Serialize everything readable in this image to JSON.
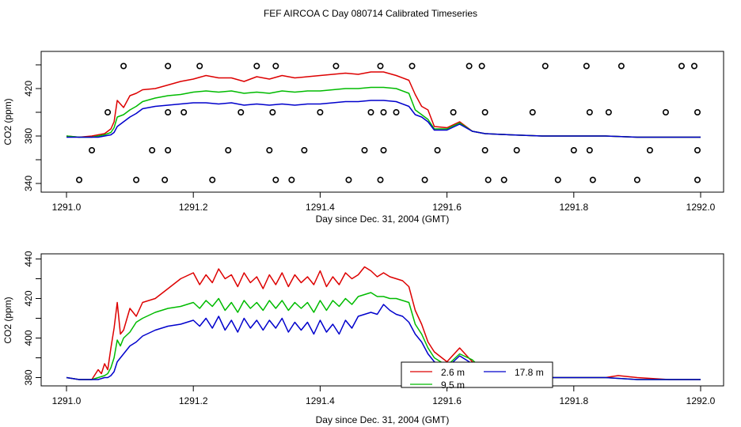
{
  "page_title": "FEF AIRCOA C  Day 080714  Calibrated Timeseries",
  "legend": {
    "entries": [
      {
        "label": "2.6 m",
        "color": "#dd0000"
      },
      {
        "label": "17.8 m",
        "color": "#0000cc"
      },
      {
        "label": "9.5 m",
        "color": "#00bb00"
      }
    ]
  },
  "chart_data": [
    {
      "type": "line",
      "title": "",
      "xlabel": "Day since Dec. 31, 2004 (GMT)",
      "ylabel": "CO2 (ppm)",
      "xlim": [
        1291.0,
        1292.0
      ],
      "ylim": [
        338,
        446
      ],
      "xticks": [
        1291.0,
        1291.2,
        1291.4,
        1291.6,
        1291.8,
        1292.0
      ],
      "xtick_labels": [
        "1291.0",
        "1291.2",
        "1291.4",
        "1291.6",
        "1291.8",
        "1292.0"
      ],
      "yticks": [
        340,
        380,
        420
      ],
      "ytick_labels": [
        "340",
        "380",
        "420"
      ],
      "minor_yticks": [
        360,
        400,
        440
      ],
      "series": [
        {
          "name": "2.6 m",
          "color": "#dd0000",
          "x": [
            1291.0,
            1291.02,
            1291.04,
            1291.05,
            1291.06,
            1291.07,
            1291.075,
            1291.08,
            1291.09,
            1291.1,
            1291.11,
            1291.12,
            1291.14,
            1291.16,
            1291.18,
            1291.2,
            1291.22,
            1291.24,
            1291.26,
            1291.28,
            1291.3,
            1291.32,
            1291.34,
            1291.36,
            1291.38,
            1291.4,
            1291.42,
            1291.44,
            1291.46,
            1291.48,
            1291.5,
            1291.52,
            1291.54,
            1291.55,
            1291.56,
            1291.57,
            1291.58,
            1291.6,
            1291.62,
            1291.64,
            1291.66,
            1291.7,
            1291.75,
            1291.8,
            1291.85,
            1291.9,
            1291.95,
            1292.0
          ],
          "y": [
            380,
            379,
            380,
            381,
            382,
            386,
            392,
            410,
            404,
            414,
            416,
            419,
            420,
            423,
            426,
            428,
            431,
            429,
            429,
            426,
            430,
            428,
            431,
            429,
            430,
            431,
            432,
            433,
            432,
            434,
            434,
            431,
            427,
            415,
            405,
            402,
            388,
            387,
            392,
            384,
            382,
            381,
            380,
            380,
            380,
            379,
            379,
            379
          ]
        },
        {
          "name": "9.5 m",
          "color": "#00bb00",
          "x": [
            1291.0,
            1291.02,
            1291.04,
            1291.05,
            1291.06,
            1291.07,
            1291.075,
            1291.08,
            1291.09,
            1291.1,
            1291.11,
            1291.12,
            1291.14,
            1291.16,
            1291.18,
            1291.2,
            1291.22,
            1291.24,
            1291.26,
            1291.28,
            1291.3,
            1291.32,
            1291.34,
            1291.36,
            1291.38,
            1291.4,
            1291.42,
            1291.44,
            1291.46,
            1291.48,
            1291.5,
            1291.52,
            1291.54,
            1291.55,
            1291.56,
            1291.57,
            1291.58,
            1291.6,
            1291.62,
            1291.64,
            1291.66,
            1291.7,
            1291.75,
            1291.8,
            1291.85,
            1291.9,
            1291.95,
            1292.0
          ],
          "y": [
            380,
            379,
            379,
            380,
            381,
            383,
            387,
            396,
            398,
            402,
            405,
            409,
            412,
            414,
            415,
            417,
            418,
            417,
            418,
            416,
            417,
            416,
            418,
            417,
            418,
            418,
            419,
            420,
            420,
            421,
            421,
            420,
            416,
            402,
            398,
            394,
            386,
            386,
            391,
            384,
            382,
            381,
            380,
            380,
            380,
            379,
            379,
            379
          ]
        },
        {
          "name": "17.8 m",
          "color": "#0000cc",
          "x": [
            1291.0,
            1291.02,
            1291.04,
            1291.05,
            1291.06,
            1291.07,
            1291.075,
            1291.08,
            1291.09,
            1291.1,
            1291.11,
            1291.12,
            1291.14,
            1291.16,
            1291.18,
            1291.2,
            1291.22,
            1291.24,
            1291.26,
            1291.28,
            1291.3,
            1291.32,
            1291.34,
            1291.36,
            1291.38,
            1291.4,
            1291.42,
            1291.44,
            1291.46,
            1291.48,
            1291.5,
            1291.52,
            1291.54,
            1291.55,
            1291.56,
            1291.57,
            1291.58,
            1291.6,
            1291.62,
            1291.64,
            1291.66,
            1291.7,
            1291.75,
            1291.8,
            1291.85,
            1291.9,
            1291.95,
            1292.0
          ],
          "y": [
            379,
            379,
            379,
            379,
            380,
            381,
            383,
            388,
            392,
            396,
            399,
            403,
            405,
            406,
            407,
            408,
            408,
            407,
            408,
            406,
            407,
            406,
            407,
            406,
            407,
            407,
            408,
            409,
            409,
            410,
            410,
            409,
            405,
            398,
            396,
            392,
            385,
            385,
            390,
            384,
            382,
            381,
            380,
            380,
            380,
            379,
            379,
            379
          ]
        }
      ],
      "markers": {
        "symbol": "open-circle",
        "x": [
          1291.02,
          1291.04,
          1291.065,
          1291.09,
          1291.11,
          1291.135,
          1291.155,
          1291.16,
          1291.16,
          1291.16,
          1291.185,
          1291.21,
          1291.23,
          1291.255,
          1291.275,
          1291.3,
          1291.32,
          1291.325,
          1291.33,
          1291.33,
          1291.355,
          1291.375,
          1291.4,
          1291.425,
          1291.445,
          1291.47,
          1291.48,
          1291.495,
          1291.495,
          1291.5,
          1291.5,
          1291.52,
          1291.545,
          1291.565,
          1291.585,
          1291.61,
          1291.635,
          1291.655,
          1291.66,
          1291.66,
          1291.665,
          1291.69,
          1291.71,
          1291.735,
          1291.755,
          1291.775,
          1291.8,
          1291.82,
          1291.825,
          1291.825,
          1291.83,
          1291.855,
          1291.875,
          1291.9,
          1291.92,
          1291.945,
          1291.97,
          1291.99,
          1291.995,
          1291.995,
          1291.995
        ],
        "y": [
          343,
          368,
          400,
          439,
          343,
          368,
          343,
          439,
          400,
          368,
          400,
          439,
          343,
          368,
          400,
          439,
          368,
          400,
          439,
          343,
          343,
          368,
          400,
          439,
          343,
          368,
          400,
          439,
          343,
          368,
          400,
          400,
          439,
          343,
          368,
          400,
          439,
          439,
          400,
          368,
          343,
          343,
          368,
          400,
          439,
          343,
          368,
          439,
          400,
          368,
          343,
          400,
          439,
          343,
          368,
          400,
          439,
          439,
          400,
          368,
          343
        ]
      }
    },
    {
      "type": "line",
      "title": "",
      "xlabel": "Day since Dec. 31, 2004 (GMT)",
      "ylabel": "CO2 (ppm)",
      "xlim": [
        1291.0,
        1292.0
      ],
      "ylim": [
        377,
        441
      ],
      "xticks": [
        1291.0,
        1291.2,
        1291.4,
        1291.6,
        1291.8,
        1292.0
      ],
      "xtick_labels": [
        "1291.0",
        "1291.2",
        "1291.4",
        "1291.6",
        "1291.8",
        "1292.0"
      ],
      "yticks": [
        380,
        400,
        420,
        440
      ],
      "ytick_labels": [
        "380",
        "400",
        "420",
        "440"
      ],
      "minor_yticks": [
        390,
        410,
        430
      ],
      "series": [
        {
          "name": "2.6 m",
          "color": "#dd0000",
          "x": [
            1291.0,
            1291.02,
            1291.04,
            1291.05,
            1291.055,
            1291.06,
            1291.065,
            1291.07,
            1291.075,
            1291.08,
            1291.085,
            1291.09,
            1291.1,
            1291.11,
            1291.12,
            1291.14,
            1291.16,
            1291.18,
            1291.2,
            1291.21,
            1291.22,
            1291.23,
            1291.24,
            1291.25,
            1291.26,
            1291.27,
            1291.28,
            1291.29,
            1291.3,
            1291.31,
            1291.32,
            1291.33,
            1291.34,
            1291.35,
            1291.36,
            1291.37,
            1291.38,
            1291.39,
            1291.4,
            1291.41,
            1291.42,
            1291.43,
            1291.44,
            1291.45,
            1291.46,
            1291.47,
            1291.48,
            1291.49,
            1291.5,
            1291.51,
            1291.52,
            1291.53,
            1291.54,
            1291.55,
            1291.56,
            1291.57,
            1291.58,
            1291.6,
            1291.62,
            1291.64,
            1291.66,
            1291.7,
            1291.75,
            1291.8,
            1291.85,
            1291.87,
            1291.9,
            1291.95,
            1292.0
          ],
          "y": [
            380,
            379,
            379,
            384,
            382,
            387,
            384,
            395,
            405,
            418,
            402,
            404,
            415,
            411,
            418,
            420,
            425,
            430,
            433,
            427,
            432,
            428,
            435,
            430,
            432,
            426,
            433,
            428,
            431,
            425,
            432,
            427,
            433,
            426,
            432,
            428,
            431,
            427,
            434,
            426,
            431,
            427,
            433,
            430,
            432,
            436,
            434,
            431,
            433,
            431,
            430,
            429,
            426,
            414,
            407,
            398,
            393,
            388,
            395,
            388,
            383,
            381,
            380,
            380,
            380,
            381,
            380,
            379,
            379
          ]
        },
        {
          "name": "9.5 m",
          "color": "#00bb00",
          "x": [
            1291.0,
            1291.02,
            1291.04,
            1291.05,
            1291.06,
            1291.065,
            1291.07,
            1291.075,
            1291.08,
            1291.085,
            1291.09,
            1291.1,
            1291.11,
            1291.12,
            1291.14,
            1291.16,
            1291.18,
            1291.2,
            1291.21,
            1291.22,
            1291.23,
            1291.24,
            1291.25,
            1291.26,
            1291.27,
            1291.28,
            1291.29,
            1291.3,
            1291.31,
            1291.32,
            1291.33,
            1291.34,
            1291.35,
            1291.36,
            1291.37,
            1291.38,
            1291.39,
            1291.4,
            1291.41,
            1291.42,
            1291.43,
            1291.44,
            1291.45,
            1291.46,
            1291.47,
            1291.48,
            1291.49,
            1291.5,
            1291.51,
            1291.52,
            1291.53,
            1291.54,
            1291.55,
            1291.56,
            1291.57,
            1291.58,
            1291.6,
            1291.62,
            1291.64,
            1291.66,
            1291.7,
            1291.75,
            1291.8,
            1291.85,
            1291.9,
            1291.95,
            1292.0
          ],
          "y": [
            380,
            379,
            379,
            380,
            381,
            382,
            385,
            390,
            399,
            396,
            400,
            403,
            408,
            410,
            413,
            415,
            416,
            418,
            415,
            419,
            416,
            420,
            414,
            418,
            413,
            419,
            415,
            418,
            414,
            419,
            415,
            419,
            414,
            418,
            415,
            418,
            413,
            419,
            414,
            419,
            416,
            420,
            417,
            421,
            422,
            423,
            421,
            421,
            420,
            420,
            419,
            418,
            407,
            402,
            395,
            390,
            386,
            392,
            389,
            383,
            381,
            380,
            380,
            380,
            379,
            379,
            379
          ]
        },
        {
          "name": "17.8 m",
          "color": "#0000cc",
          "x": [
            1291.0,
            1291.02,
            1291.04,
            1291.05,
            1291.06,
            1291.065,
            1291.07,
            1291.075,
            1291.08,
            1291.09,
            1291.1,
            1291.11,
            1291.12,
            1291.14,
            1291.16,
            1291.18,
            1291.2,
            1291.21,
            1291.22,
            1291.23,
            1291.24,
            1291.25,
            1291.26,
            1291.27,
            1291.28,
            1291.29,
            1291.3,
            1291.31,
            1291.32,
            1291.33,
            1291.34,
            1291.35,
            1291.36,
            1291.37,
            1291.38,
            1291.39,
            1291.4,
            1291.41,
            1291.42,
            1291.43,
            1291.44,
            1291.45,
            1291.46,
            1291.47,
            1291.48,
            1291.49,
            1291.5,
            1291.51,
            1291.52,
            1291.53,
            1291.54,
            1291.55,
            1291.56,
            1291.57,
            1291.58,
            1291.6,
            1291.62,
            1291.64,
            1291.66,
            1291.7,
            1291.75,
            1291.8,
            1291.85,
            1291.9,
            1291.95,
            1292.0
          ],
          "y": [
            380,
            379,
            379,
            379,
            380,
            380,
            381,
            383,
            388,
            392,
            396,
            398,
            401,
            404,
            406,
            407,
            409,
            406,
            410,
            405,
            411,
            404,
            409,
            403,
            410,
            405,
            409,
            404,
            409,
            405,
            410,
            403,
            408,
            404,
            408,
            402,
            409,
            403,
            407,
            402,
            409,
            405,
            411,
            412,
            413,
            412,
            417,
            414,
            412,
            411,
            408,
            402,
            398,
            392,
            388,
            385,
            391,
            387,
            383,
            381,
            380,
            380,
            380,
            379,
            379,
            379
          ]
        }
      ]
    }
  ]
}
